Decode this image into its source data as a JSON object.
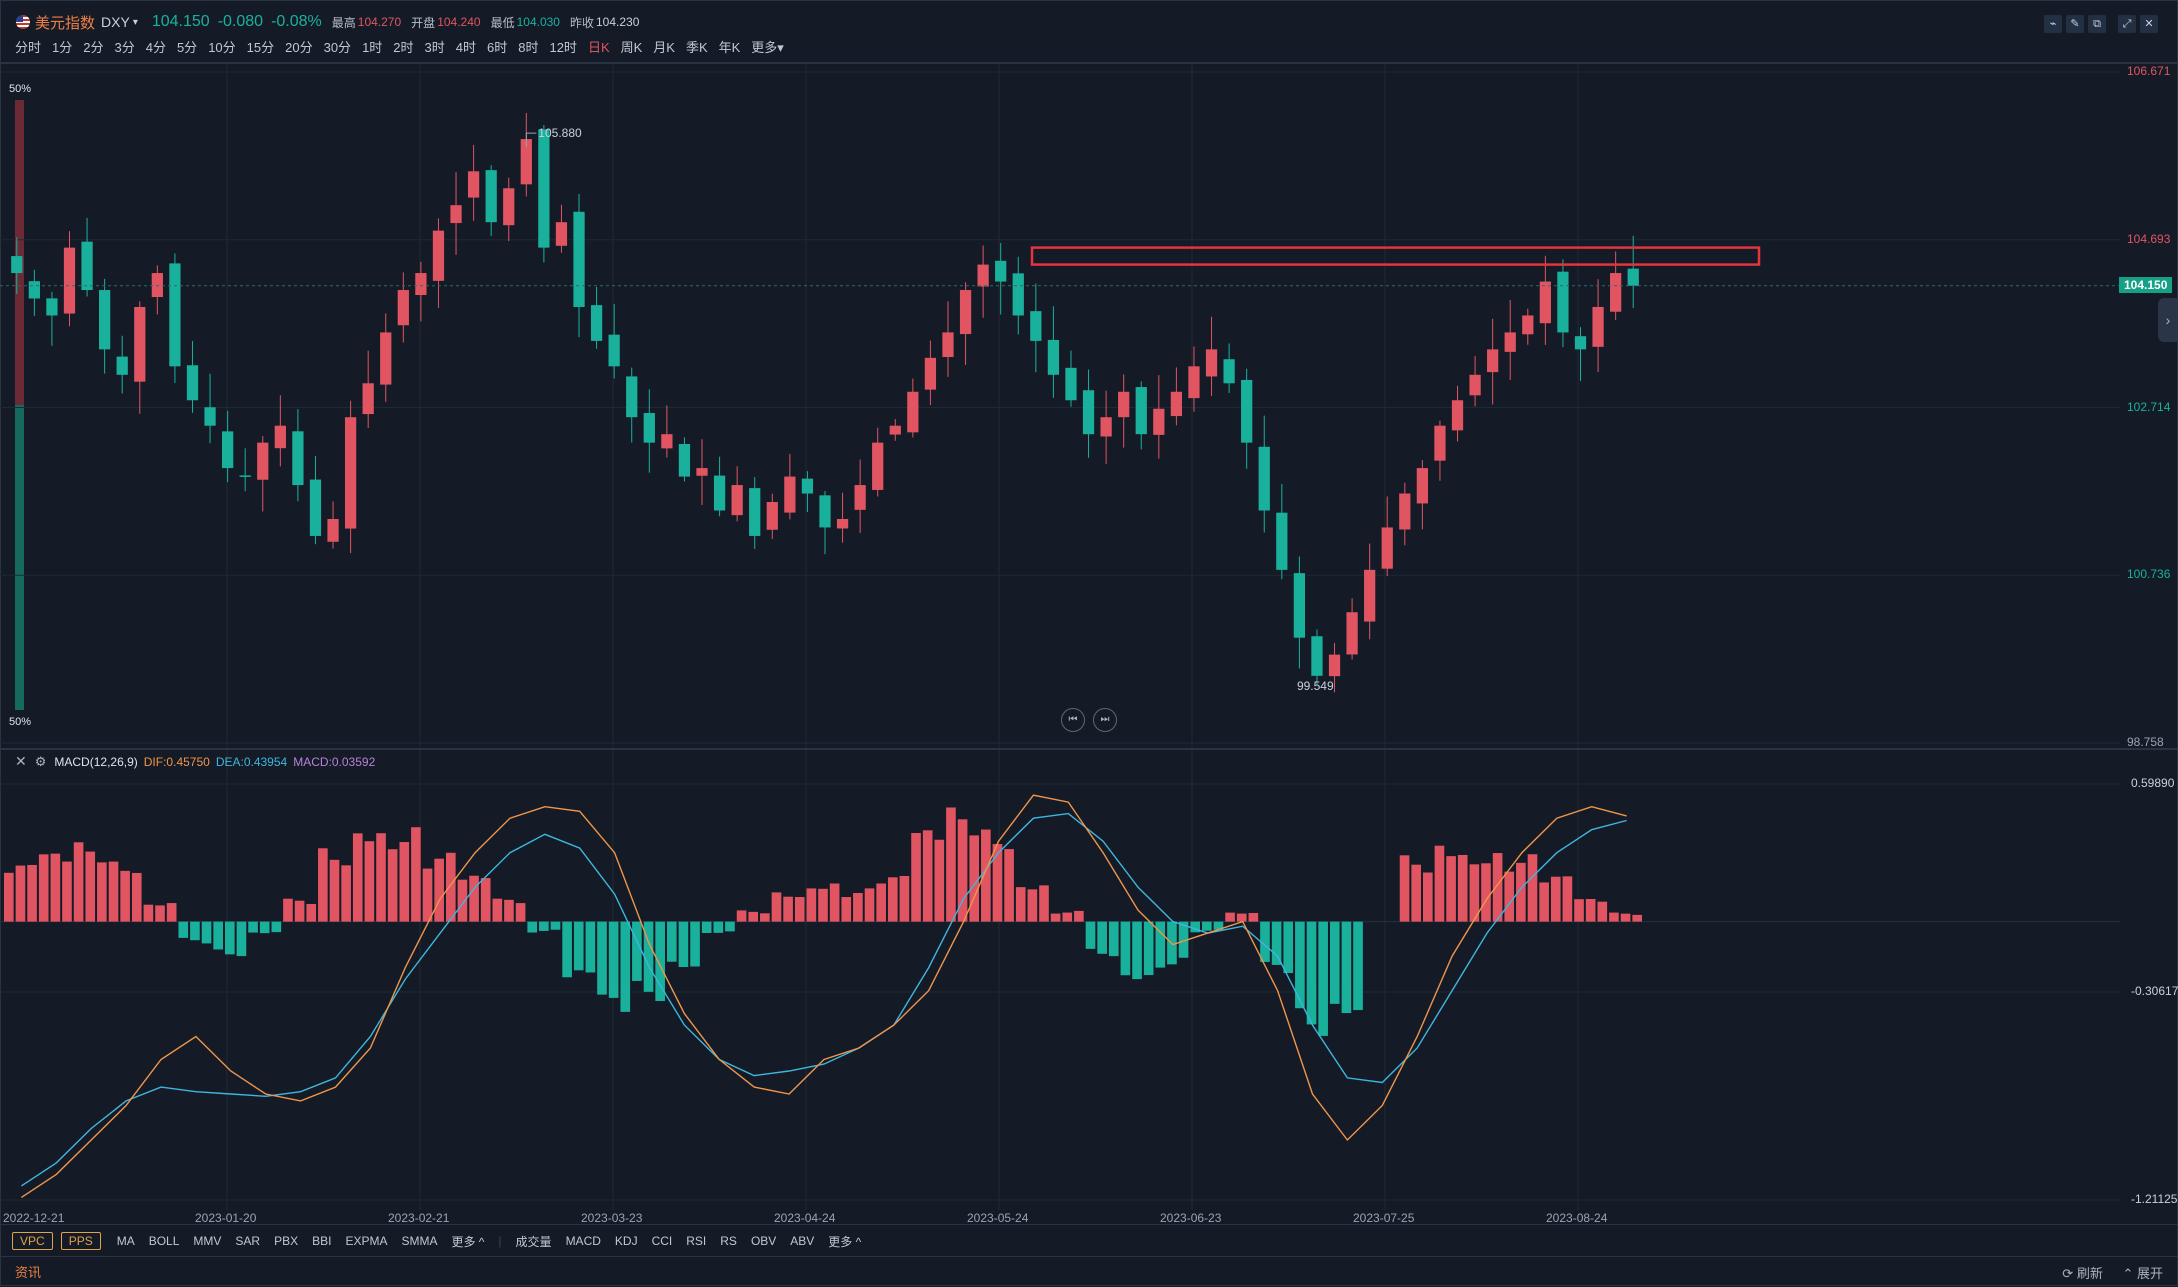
{
  "header": {
    "name": "美元指数",
    "code": "DXY",
    "caret": "▾",
    "price": "104.150",
    "change": "-0.080",
    "change_pct": "-0.08%",
    "high_label": "最高",
    "high": "104.270",
    "open_label": "开盘",
    "open": "104.240",
    "low_label": "最低",
    "low": "104.030",
    "prev_label": "昨收",
    "prev": "104.230"
  },
  "periods": [
    "分时",
    "1分",
    "2分",
    "3分",
    "4分",
    "5分",
    "10分",
    "15分",
    "20分",
    "30分",
    "1时",
    "2时",
    "3时",
    "4时",
    "6时",
    "8时",
    "12时",
    "日K",
    "周K",
    "月K",
    "季K",
    "年K",
    "更多▾"
  ],
  "active_period": "日K",
  "volume_pct": {
    "top": "50%",
    "bottom": "50%",
    "red_fraction": 0.5
  },
  "price_axis": {
    "ticks": [
      "106.671",
      "104.693",
      "102.714",
      "100.736",
      "98.758"
    ],
    "current": "104.150",
    "high_marker": "105.880",
    "low_marker": "99.549"
  },
  "macd_header": {
    "name": "MACD(12,26,9)",
    "dif": "DIF:0.45750",
    "dea": "DEA:0.43954",
    "macd": "MACD:0.03592"
  },
  "macd_axis": [
    "0.59890",
    "-0.30617",
    "-1.21125"
  ],
  "dates": [
    "2022-12-21",
    "2023-01-20",
    "2023-02-21",
    "2023-03-23",
    "2023-04-24",
    "2023-05-24",
    "2023-06-23",
    "2023-07-25",
    "2023-08-24"
  ],
  "indicators_main": [
    "VPC",
    "PPS"
  ],
  "indicators_overlay": [
    "MA",
    "BOLL",
    "MMV",
    "SAR",
    "PBX",
    "BBI",
    "EXPMA",
    "SMMA",
    "更多 ^"
  ],
  "indicators_sub": [
    "成交量",
    "MACD",
    "KDJ",
    "CCI",
    "RSI",
    "RS",
    "OBV",
    "ABV",
    "更多 ^"
  ],
  "news": {
    "label": "资讯",
    "refresh": "刷新",
    "expand": "展开"
  },
  "colors": {
    "up": "#e05561",
    "down": "#1ab19c",
    "dif": "#f0954a",
    "dea": "#3fb6dd",
    "highlight": "#e5343c"
  },
  "chart_data": [
    {
      "type": "candlestick",
      "title": "美元指数 DXY",
      "x_range": [
        "2022-12-21",
        "2023-09-01"
      ],
      "ylim": [
        98.758,
        106.671
      ],
      "y_ticks": [
        106.671,
        104.693,
        102.714,
        100.736,
        98.758
      ],
      "close_series": [
        104.3,
        104.0,
        103.8,
        104.6,
        104.1,
        103.4,
        103.1,
        103.9,
        104.3,
        103.2,
        102.8,
        102.5,
        102.0,
        101.9,
        102.3,
        102.5,
        101.8,
        101.2,
        101.4,
        102.6,
        103.0,
        103.6,
        104.1,
        104.3,
        104.8,
        105.1,
        105.5,
        104.9,
        105.3,
        105.88,
        104.6,
        104.9,
        103.9,
        103.5,
        103.2,
        102.6,
        102.3,
        102.4,
        101.9,
        102.0,
        101.5,
        101.8,
        101.2,
        101.6,
        101.9,
        101.7,
        101.3,
        101.4,
        101.8,
        102.3,
        102.5,
        102.9,
        103.3,
        103.6,
        104.1,
        104.4,
        104.2,
        103.8,
        103.5,
        103.1,
        102.8,
        102.4,
        102.6,
        102.9,
        102.4,
        102.7,
        102.9,
        103.2,
        103.4,
        103.0,
        102.3,
        101.5,
        100.8,
        100.0,
        99.55,
        99.8,
        100.3,
        100.8,
        101.3,
        101.7,
        102.0,
        102.5,
        102.8,
        103.1,
        103.4,
        103.6,
        103.8,
        104.2,
        103.6,
        103.4,
        103.9,
        104.3,
        104.15
      ],
      "annotations": {
        "high": 105.88,
        "low": 99.549,
        "current": 104.15,
        "resistance_band": [
          104.4,
          104.6
        ]
      }
    },
    {
      "type": "line",
      "title": "MACD(12,26,9)",
      "ylim": [
        -1.21125,
        0.5989
      ],
      "y_ticks": [
        0.5989,
        -0.30617,
        -1.21125
      ],
      "series": [
        {
          "name": "DIF",
          "values": [
            -1.2,
            -1.1,
            -0.95,
            -0.8,
            -0.6,
            -0.5,
            -0.65,
            -0.75,
            -0.78,
            -0.72,
            -0.55,
            -0.2,
            0.1,
            0.3,
            0.45,
            0.5,
            0.48,
            0.3,
            -0.1,
            -0.4,
            -0.6,
            -0.72,
            -0.75,
            -0.6,
            -0.55,
            -0.45,
            -0.3,
            0.0,
            0.35,
            0.55,
            0.52,
            0.3,
            0.05,
            -0.1,
            -0.05,
            0.0,
            -0.3,
            -0.75,
            -0.95,
            -0.8,
            -0.5,
            -0.15,
            0.1,
            0.3,
            0.45,
            0.5,
            0.46
          ]
        },
        {
          "name": "DEA",
          "values": [
            -1.15,
            -1.05,
            -0.9,
            -0.78,
            -0.72,
            -0.74,
            -0.75,
            -0.76,
            -0.74,
            -0.68,
            -0.5,
            -0.25,
            -0.05,
            0.15,
            0.3,
            0.38,
            0.32,
            0.12,
            -0.2,
            -0.45,
            -0.6,
            -0.67,
            -0.65,
            -0.62,
            -0.55,
            -0.45,
            -0.2,
            0.1,
            0.3,
            0.45,
            0.47,
            0.35,
            0.15,
            0.0,
            -0.05,
            -0.02,
            -0.15,
            -0.45,
            -0.68,
            -0.7,
            -0.55,
            -0.3,
            -0.05,
            0.15,
            0.3,
            0.4,
            0.44
          ]
        },
        {
          "name": "MACD",
          "values": [
            0.25,
            0.3,
            0.35,
            0.3,
            0.1,
            -0.1,
            -0.15,
            -0.05,
            0.1,
            0.35,
            0.5,
            0.45,
            0.3,
            0.2,
            0.1,
            -0.05,
            -0.3,
            -0.45,
            -0.35,
            -0.2,
            -0.05,
            0.05,
            0.15,
            0.2,
            0.15,
            0.2,
            0.4,
            0.5,
            0.45,
            0.2,
            0.05,
            -0.15,
            -0.25,
            -0.2,
            -0.05,
            0.05,
            -0.25,
            -0.5,
            -0.4,
            0.0,
            0.3,
            0.4,
            0.35,
            0.3,
            0.2,
            0.1,
            0.04
          ]
        }
      ]
    }
  ]
}
